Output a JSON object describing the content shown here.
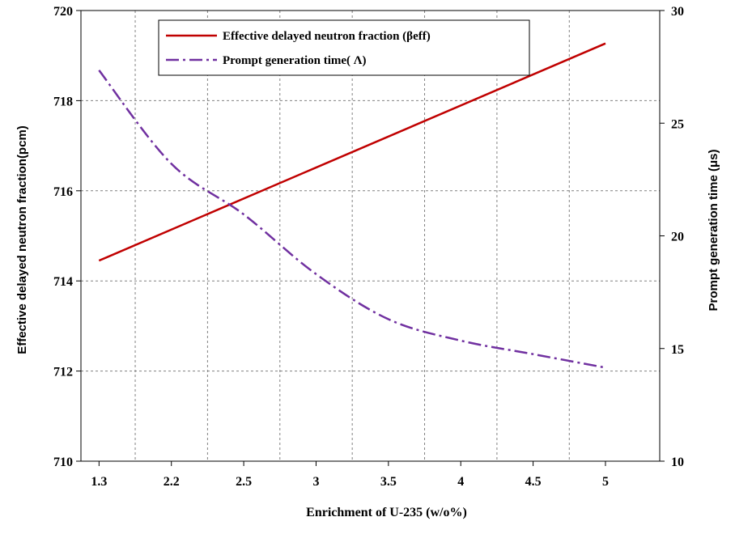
{
  "chart_data": {
    "type": "line",
    "xlabel": "Enrichment of U-235  (w/o%)",
    "ylabel_left": "Effective delayed neutron fraction(pcm)",
    "ylabel_right": "Prompt generation time (μs)",
    "x_ticks": [
      "1.3",
      "2.2",
      "2.5",
      "3",
      "3.5",
      "4",
      "4.5",
      "5"
    ],
    "ylim_left": [
      710,
      720
    ],
    "yticks_left": [
      710,
      712,
      714,
      716,
      718,
      720
    ],
    "ylim_right": [
      10,
      30
    ],
    "yticks_right": [
      10,
      15,
      20,
      25,
      30
    ],
    "grid": true,
    "legend_position": "top-center",
    "series": [
      {
        "name": "Effective delayed neutron fraction (βeff)",
        "axis": "left",
        "color": "#c00000",
        "style": "solid",
        "x": [
          "1.3",
          "5"
        ],
        "values": [
          714.45,
          719.27
        ]
      },
      {
        "name": "Prompt  generation time( Λ)",
        "axis": "right",
        "color": "#7030a0",
        "style": "dash-dot",
        "x": [
          "1.3",
          "2.2",
          "2.5",
          "3",
          "3.5",
          "4",
          "4.5",
          "5"
        ],
        "values": [
          27.35,
          23.2,
          20.95,
          18.3,
          16.3,
          15.35,
          14.75,
          14.15
        ]
      }
    ]
  }
}
